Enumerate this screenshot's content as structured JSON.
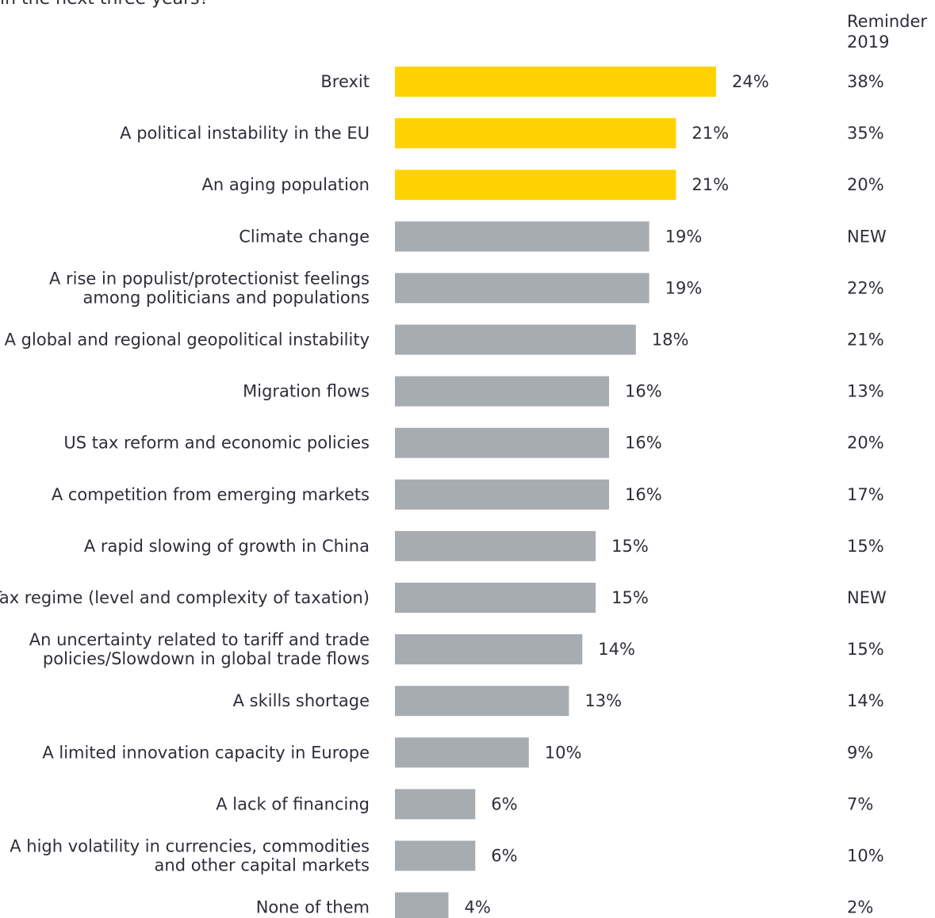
{
  "question_fragment": "in the next three years?",
  "reminder_header": {
    "line1": "Reminder",
    "line2": "2019"
  },
  "colors": {
    "highlight": "#ffd200",
    "default": "#a7acb1",
    "text": "#2e2e38"
  },
  "chart_data": {
    "type": "bar",
    "orientation": "horizontal",
    "xlim": [
      0,
      24
    ],
    "grid": false,
    "categories": [
      [
        "Brexit"
      ],
      [
        "A political instability in the EU"
      ],
      [
        "An aging population"
      ],
      [
        "Climate change"
      ],
      [
        "A rise in populist/protectionist feelings",
        "among politicians and populations"
      ],
      [
        "A global and regional geopolitical instability"
      ],
      [
        "Migration flows"
      ],
      [
        "US tax reform and economic policies"
      ],
      [
        "A competition from emerging markets"
      ],
      [
        "A rapid slowing of growth in China"
      ],
      [
        "Tax regime (level and complexity of taxation)"
      ],
      [
        "An uncertainty related to tariff and trade",
        "policies/Slowdown in global trade flows"
      ],
      [
        "A skills shortage"
      ],
      [
        "A limited innovation capacity in Europe"
      ],
      [
        "A lack of financing"
      ],
      [
        "A high volatility in currencies, commodities",
        "and other capital markets"
      ],
      [
        "None of them"
      ]
    ],
    "values": [
      24,
      21,
      21,
      19,
      19,
      18,
      16,
      16,
      16,
      15,
      15,
      14,
      13,
      10,
      6,
      6,
      4
    ],
    "value_labels": [
      "24%",
      "21%",
      "21%",
      "19%",
      "19%",
      "18%",
      "16%",
      "16%",
      "16%",
      "15%",
      "15%",
      "14%",
      "13%",
      "10%",
      "6%",
      "6%",
      "4%"
    ],
    "highlighted": [
      true,
      true,
      true,
      false,
      false,
      false,
      false,
      false,
      false,
      false,
      false,
      false,
      false,
      false,
      false,
      false,
      false
    ],
    "reminder_2019": [
      "38%",
      "35%",
      "20%",
      "NEW",
      "22%",
      "21%",
      "13%",
      "20%",
      "17%",
      "15%",
      "NEW",
      "15%",
      "14%",
      "9%",
      "7%",
      "10%",
      "2%"
    ]
  }
}
